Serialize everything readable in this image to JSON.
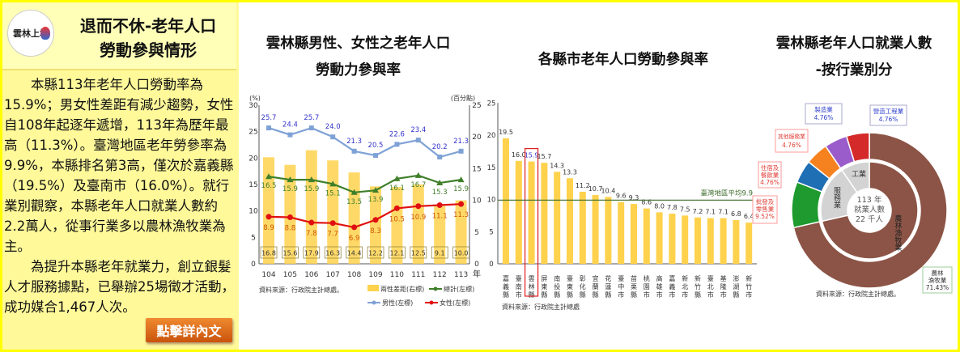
{
  "panel": {
    "title_line1": "退而不休-老年人口",
    "title_line2": "勞動參與情形",
    "logo_text": "雲林上場",
    "paragraph1": "本縣113年老年人口勞動率為15.9%；男女性差距有減少趨勢，女性自108年起逐年遞增，113年為歷年最高（11.3%）。臺灣地區老年勞參率為9.9%，本縣排名第3高，僅次於嘉義縣（19.5%）及臺南市（16.0%）。就行業別觀察，本縣老年人口就業人數約2.2萬人，從事行業多以農林漁牧業為主。",
    "paragraph2": "為提升本縣老年就業力，創立銀髮人才服務據點，已舉辦25場徵才活動，成功媒合1,467人次。",
    "button": "點擊詳內文"
  },
  "chart_data": [
    {
      "type": "bar+line",
      "title_line1": "雲林縣男性、女性之老年人口",
      "title_line2": "勞動力參與率",
      "left_unit": "(%)",
      "right_unit": "(百分點)",
      "x_unit": "年",
      "categories": [
        "104",
        "105",
        "106",
        "107",
        "108",
        "109",
        "110",
        "111",
        "112",
        "113"
      ],
      "ylim_left": [
        0,
        30
      ],
      "yticks_left": [
        0,
        5,
        10,
        15,
        20,
        25,
        30
      ],
      "ylim_right": [
        0,
        25
      ],
      "yticks_right": [
        0,
        5,
        10,
        15,
        20,
        25
      ],
      "series": [
        {
          "name": "兩性差距(右標)",
          "type": "bar",
          "axis": "right",
          "color": "#ffd24d",
          "values": [
            16.8,
            15.6,
            17.9,
            16.3,
            14.4,
            12.2,
            12.1,
            12.5,
            9.1,
            10.0
          ]
        },
        {
          "name": "總計(左標)",
          "type": "line",
          "axis": "left",
          "color": "#3f7f2a",
          "marker": "triangle",
          "values": [
            16.5,
            15.9,
            15.9,
            15.1,
            13.5,
            13.9,
            16.1,
            16.7,
            15.3,
            15.9
          ]
        },
        {
          "name": "男性(左標)",
          "type": "line",
          "axis": "left",
          "color": "#7fa2d6",
          "label_color": "#3333cc",
          "marker": "square",
          "values": [
            25.7,
            24.4,
            25.7,
            24.0,
            21.3,
            20.5,
            22.6,
            23.4,
            20.2,
            21.3
          ]
        },
        {
          "name": "女性(左標)",
          "type": "line",
          "axis": "left",
          "color": "#e01010",
          "label_color": "#cc5500",
          "marker": "diamond",
          "values": [
            8.9,
            8.8,
            7.8,
            7.7,
            6.9,
            8.3,
            10.5,
            10.9,
            11.1,
            11.3
          ]
        }
      ],
      "source": "資料來源：行政院主計總處。"
    },
    {
      "type": "bar",
      "title": "各縣市老年人口勞動參與率",
      "categories": [
        "嘉義縣",
        "臺南市",
        "雲林縣",
        "屏東縣",
        "南投縣",
        "臺東縣",
        "彰化縣",
        "宜蘭縣",
        "花蓮縣",
        "臺中市",
        "苗栗縣",
        "桃園市",
        "高雄市",
        "嘉義市",
        "新北市",
        "新竹縣",
        "臺北市",
        "基隆市",
        "澎湖縣",
        "新竹市"
      ],
      "values": [
        19.5,
        16.0,
        15.9,
        15.7,
        14.3,
        13.3,
        11.2,
        10.7,
        10.4,
        9.6,
        9.3,
        8.6,
        8.0,
        7.8,
        7.5,
        7.2,
        7.1,
        7.1,
        6.8,
        6.4
      ],
      "highlight": "雲林縣",
      "ylim": [
        0,
        25
      ],
      "yticks": [
        0,
        5,
        10,
        15,
        20,
        25
      ],
      "reference_line": {
        "label": "臺灣地區平均9.9",
        "value": 9.9,
        "color": "#3d6b2a"
      },
      "bar_color": "#ffd24d",
      "source": "資料來源：行政院主計總處"
    },
    {
      "type": "pie",
      "title_line1": "雲林縣老年人口就業人數",
      "title_line2": "-按行業別分",
      "center_text": [
        "113 年",
        "就業人數",
        "22 千人"
      ],
      "outer": [
        {
          "label": "農林漁牧業",
          "line2": "71.43%",
          "value": 71.43,
          "color": "#8c5446"
        },
        {
          "label": "批發及零售業",
          "line1": "批發及",
          "line1b": "零售業",
          "line2": "9.52%",
          "value": 9.52,
          "color": "#1e9a2e"
        },
        {
          "label": "住宿及餐飲業",
          "line1": "住宿及",
          "line1b": "餐飲業",
          "line2": "4.76%",
          "value": 4.76,
          "color": "#1f6fb5"
        },
        {
          "label": "其他服務業",
          "line1": "其他",
          "line1b": "服務業",
          "line2": "4.76%",
          "value": 4.76,
          "color": "#f5821f"
        },
        {
          "label": "製造業",
          "line2": "4.76%",
          "value": 4.76,
          "color": "#9b5ccb"
        },
        {
          "label": "營造工程業",
          "line2": "4.76%",
          "value": 4.76,
          "color": "#d42a2a"
        }
      ],
      "inner": [
        {
          "label": "農林漁牧業",
          "value": 71.43,
          "color": "#8c5446"
        },
        {
          "label": "服務業",
          "value": 19.05,
          "color": "#d3d3d3"
        },
        {
          "label": "工業",
          "value": 9.52,
          "color": "#d3d3d3"
        }
      ],
      "source": "資料來源：行政院主計總處。"
    }
  ]
}
